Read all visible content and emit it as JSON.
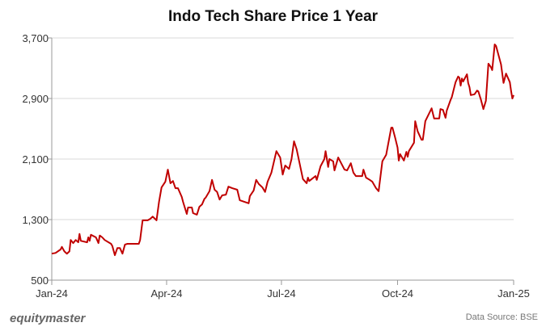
{
  "chart_data": {
    "type": "line",
    "title": "Indo Tech Share Price 1 Year",
    "xlabel": "",
    "ylabel": "",
    "ylim": [
      500,
      3700
    ],
    "y_ticks": [
      "500",
      "1,300",
      "2,100",
      "2,900",
      "3,700"
    ],
    "y_tick_values": [
      500,
      1300,
      2100,
      2900,
      3700
    ],
    "x_ticks": [
      "Jan-24",
      "Apr-24",
      "Jul-24",
      "Oct-24",
      "Jan-25"
    ],
    "x_tick_dates": [
      "2024-01-01",
      "2024-04-01",
      "2024-07-01",
      "2024-10-01",
      "2025-01-01"
    ],
    "xlim": [
      "2024-01-01",
      "2025-01-01"
    ],
    "grid": "horizontal",
    "line_color": "#c00000",
    "series": [
      {
        "points": [
          [
            "2024-01-01",
            850
          ],
          [
            "2024-01-04",
            860
          ],
          [
            "2024-01-08",
            905
          ],
          [
            "2024-01-09",
            940
          ],
          [
            "2024-01-11",
            880
          ],
          [
            "2024-01-13",
            850
          ],
          [
            "2024-01-15",
            880
          ],
          [
            "2024-01-16",
            1030
          ],
          [
            "2024-01-18",
            990
          ],
          [
            "2024-01-20",
            1030
          ],
          [
            "2024-01-22",
            1000
          ],
          [
            "2024-01-23",
            1110
          ],
          [
            "2024-01-24",
            1020
          ],
          [
            "2024-01-29",
            1000
          ],
          [
            "2024-01-30",
            1065
          ],
          [
            "2024-01-31",
            1020
          ],
          [
            "2024-02-01",
            1100
          ],
          [
            "2024-02-05",
            1065
          ],
          [
            "2024-02-07",
            990
          ],
          [
            "2024-02-08",
            1090
          ],
          [
            "2024-02-10",
            1065
          ],
          [
            "2024-02-12",
            1030
          ],
          [
            "2024-02-17",
            980
          ],
          [
            "2024-02-18",
            950
          ],
          [
            "2024-02-20",
            830
          ],
          [
            "2024-02-22",
            925
          ],
          [
            "2024-02-24",
            925
          ],
          [
            "2024-02-26",
            850
          ],
          [
            "2024-02-28",
            970
          ],
          [
            "2024-03-01",
            980
          ],
          [
            "2024-03-10",
            980
          ],
          [
            "2024-03-11",
            1030
          ],
          [
            "2024-03-13",
            1290
          ],
          [
            "2024-03-17",
            1290
          ],
          [
            "2024-03-19",
            1310
          ],
          [
            "2024-03-21",
            1340
          ],
          [
            "2024-03-24",
            1290
          ],
          [
            "2024-03-26",
            1535
          ],
          [
            "2024-03-28",
            1725
          ],
          [
            "2024-03-31",
            1800
          ],
          [
            "2024-04-02",
            1960
          ],
          [
            "2024-04-04",
            1780
          ],
          [
            "2024-04-06",
            1810
          ],
          [
            "2024-04-08",
            1715
          ],
          [
            "2024-04-10",
            1715
          ],
          [
            "2024-04-13",
            1600
          ],
          [
            "2024-04-14",
            1535
          ],
          [
            "2024-04-17",
            1375
          ],
          [
            "2024-04-18",
            1460
          ],
          [
            "2024-04-21",
            1460
          ],
          [
            "2024-04-22",
            1385
          ],
          [
            "2024-04-25",
            1365
          ],
          [
            "2024-04-27",
            1470
          ],
          [
            "2024-04-29",
            1500
          ],
          [
            "2024-05-01",
            1575
          ],
          [
            "2024-05-02",
            1590
          ],
          [
            "2024-05-05",
            1675
          ],
          [
            "2024-05-07",
            1825
          ],
          [
            "2024-05-09",
            1695
          ],
          [
            "2024-05-11",
            1665
          ],
          [
            "2024-05-13",
            1565
          ],
          [
            "2024-05-15",
            1620
          ],
          [
            "2024-05-18",
            1630
          ],
          [
            "2024-05-20",
            1735
          ],
          [
            "2024-05-23",
            1715
          ],
          [
            "2024-05-27",
            1695
          ],
          [
            "2024-05-29",
            1555
          ],
          [
            "2024-06-05",
            1515
          ],
          [
            "2024-06-06",
            1610
          ],
          [
            "2024-06-09",
            1685
          ],
          [
            "2024-06-11",
            1825
          ],
          [
            "2024-06-13",
            1770
          ],
          [
            "2024-06-16",
            1725
          ],
          [
            "2024-06-18",
            1665
          ],
          [
            "2024-06-20",
            1800
          ],
          [
            "2024-06-23",
            1920
          ],
          [
            "2024-06-27",
            2205
          ],
          [
            "2024-06-30",
            2120
          ],
          [
            "2024-07-02",
            1895
          ],
          [
            "2024-07-04",
            2015
          ],
          [
            "2024-07-07",
            1970
          ],
          [
            "2024-07-09",
            2100
          ],
          [
            "2024-07-11",
            2335
          ],
          [
            "2024-07-13",
            2230
          ],
          [
            "2024-07-18",
            1835
          ],
          [
            "2024-07-21",
            1780
          ],
          [
            "2024-07-22",
            1855
          ],
          [
            "2024-07-23",
            1810
          ],
          [
            "2024-07-28",
            1875
          ],
          [
            "2024-07-29",
            1825
          ],
          [
            "2024-08-01",
            2005
          ],
          [
            "2024-08-04",
            2100
          ],
          [
            "2024-08-05",
            2205
          ],
          [
            "2024-08-07",
            1995
          ],
          [
            "2024-08-08",
            2100
          ],
          [
            "2024-08-11",
            2070
          ],
          [
            "2024-08-12",
            1950
          ],
          [
            "2024-08-15",
            2120
          ],
          [
            "2024-08-20",
            1960
          ],
          [
            "2024-08-22",
            1950
          ],
          [
            "2024-08-25",
            2045
          ],
          [
            "2024-08-27",
            1920
          ],
          [
            "2024-08-29",
            1875
          ],
          [
            "2024-09-03",
            1875
          ],
          [
            "2024-09-04",
            1960
          ],
          [
            "2024-09-06",
            1855
          ],
          [
            "2024-09-09",
            1825
          ],
          [
            "2024-09-11",
            1800
          ],
          [
            "2024-09-14",
            1715
          ],
          [
            "2024-09-16",
            1675
          ],
          [
            "2024-09-19",
            2070
          ],
          [
            "2024-09-22",
            2155
          ],
          [
            "2024-09-26",
            2515
          ],
          [
            "2024-09-27",
            2515
          ],
          [
            "2024-09-29",
            2390
          ],
          [
            "2024-10-01",
            2250
          ],
          [
            "2024-10-02",
            2080
          ],
          [
            "2024-10-03",
            2165
          ],
          [
            "2024-10-06",
            2080
          ],
          [
            "2024-10-08",
            2195
          ],
          [
            "2024-10-09",
            2130
          ],
          [
            "2024-10-10",
            2205
          ],
          [
            "2024-10-14",
            2315
          ],
          [
            "2024-10-15",
            2600
          ],
          [
            "2024-10-17",
            2465
          ],
          [
            "2024-10-20",
            2355
          ],
          [
            "2024-10-21",
            2355
          ],
          [
            "2024-10-23",
            2600
          ],
          [
            "2024-10-28",
            2770
          ],
          [
            "2024-10-30",
            2635
          ],
          [
            "2024-11-03",
            2635
          ],
          [
            "2024-11-04",
            2760
          ],
          [
            "2024-11-06",
            2750
          ],
          [
            "2024-11-08",
            2645
          ],
          [
            "2024-11-09",
            2740
          ],
          [
            "2024-11-12",
            2880
          ],
          [
            "2024-11-13",
            2920
          ],
          [
            "2024-11-16",
            3115
          ],
          [
            "2024-11-18",
            3190
          ],
          [
            "2024-11-19",
            3175
          ],
          [
            "2024-11-20",
            3070
          ],
          [
            "2024-11-21",
            3165
          ],
          [
            "2024-11-22",
            3125
          ],
          [
            "2024-11-25",
            3220
          ],
          [
            "2024-11-26",
            3105
          ],
          [
            "2024-11-27",
            3050
          ],
          [
            "2024-11-28",
            2945
          ],
          [
            "2024-12-01",
            2955
          ],
          [
            "2024-12-03",
            3005
          ],
          [
            "2024-12-04",
            2995
          ],
          [
            "2024-12-06",
            2890
          ],
          [
            "2024-12-08",
            2760
          ],
          [
            "2024-12-10",
            2870
          ],
          [
            "2024-12-12",
            3360
          ],
          [
            "2024-12-14",
            3315
          ],
          [
            "2024-12-15",
            3275
          ],
          [
            "2024-12-17",
            3615
          ],
          [
            "2024-12-18",
            3595
          ],
          [
            "2024-12-22",
            3350
          ],
          [
            "2024-12-24",
            3105
          ],
          [
            "2024-12-26",
            3230
          ],
          [
            "2024-12-29",
            3115
          ],
          [
            "2024-12-30",
            2995
          ],
          [
            "2024-12-31",
            2900
          ],
          [
            "2025-01-01",
            2945
          ]
        ]
      }
    ]
  },
  "footer": {
    "brand": "equitymaster",
    "source": "Data Source: BSE"
  }
}
